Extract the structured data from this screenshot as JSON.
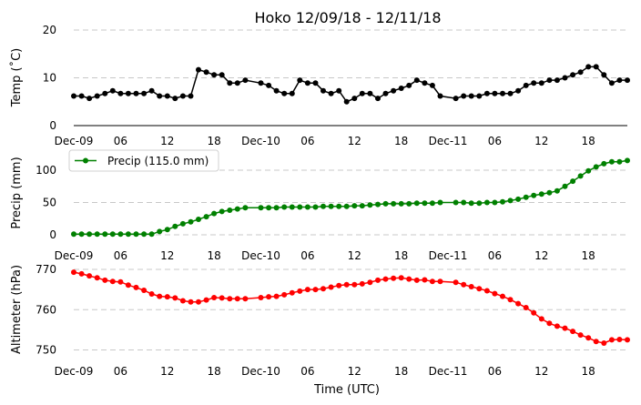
{
  "figure": {
    "title": "Hoko 12/09/18 - 12/11/18",
    "xlabel": "Time (UTC)"
  },
  "chart_data": [
    {
      "type": "line",
      "ylabel": "Temp ($^\\circ$C)",
      "ylabel_display": "Temp (˚C)",
      "ylim": [
        0,
        20
      ],
      "yticks": [
        0,
        10,
        20
      ],
      "grid": "horizontal-dashed",
      "color": "#000000",
      "x_ticks": [
        "Dec-09",
        "06",
        "12",
        "18",
        "Dec-10",
        "06",
        "12",
        "18",
        "Dec-11",
        "06",
        "12",
        "18"
      ],
      "x_hours": [
        0,
        6,
        12,
        18,
        24,
        30,
        36,
        42,
        48,
        54,
        60,
        66
      ],
      "x_hours_range": [
        0,
        71
      ],
      "series": [
        {
          "name": "",
          "hours": [
            0,
            1,
            2,
            3,
            4,
            5,
            6,
            7,
            8,
            9,
            10,
            11,
            12,
            13,
            14,
            15,
            16,
            17,
            18,
            19,
            20,
            21,
            22,
            24,
            25,
            26,
            27,
            28,
            29,
            30,
            31,
            32,
            33,
            34,
            35,
            36,
            37,
            38,
            39,
            40,
            41,
            42,
            43,
            44,
            45,
            46,
            47,
            49,
            50,
            51,
            52,
            53,
            54,
            55,
            56,
            57,
            58,
            59,
            60,
            61,
            62,
            63,
            64,
            65,
            66,
            67,
            68,
            69,
            70,
            71
          ],
          "values": [
            6.2,
            6.2,
            5.7,
            6.2,
            6.7,
            7.3,
            6.7,
            6.7,
            6.7,
            6.7,
            7.3,
            6.2,
            6.2,
            5.7,
            6.2,
            6.2,
            11.7,
            11.2,
            10.6,
            10.6,
            8.9,
            8.9,
            9.5,
            8.9,
            8.4,
            7.3,
            6.7,
            6.7,
            9.5,
            8.9,
            8.9,
            7.3,
            6.7,
            7.3,
            5.0,
            5.7,
            6.7,
            6.7,
            5.7,
            6.7,
            7.3,
            7.8,
            8.4,
            9.5,
            8.9,
            8.4,
            6.2,
            5.7,
            6.2,
            6.2,
            6.2,
            6.7,
            6.7,
            6.7,
            6.7,
            7.3,
            8.4,
            8.9,
            8.9,
            9.5,
            9.5,
            10.0,
            10.6,
            11.2,
            12.3,
            12.3,
            10.6,
            8.9,
            9.5,
            9.5
          ]
        }
      ]
    },
    {
      "type": "line",
      "ylabel": "Precip (mm)",
      "ylim": [
        -10,
        125
      ],
      "yticks": [
        0,
        50,
        100
      ],
      "grid": "horizontal-dashed",
      "color": "#008000",
      "legend": {
        "label": "Precip (115.0 mm)",
        "placement": "upper-left"
      },
      "x_ticks": [
        "Dec-09",
        "06",
        "12",
        "18",
        "Dec-10",
        "06",
        "12",
        "18",
        "Dec-11",
        "06",
        "12",
        "18"
      ],
      "x_hours": [
        0,
        6,
        12,
        18,
        24,
        30,
        36,
        42,
        48,
        54,
        60,
        66
      ],
      "x_hours_range": [
        0,
        71
      ],
      "series": [
        {
          "name": "Precip (115.0 mm)",
          "hours": [
            0,
            1,
            2,
            3,
            4,
            5,
            6,
            7,
            8,
            9,
            10,
            11,
            12,
            13,
            14,
            15,
            16,
            17,
            18,
            19,
            20,
            21,
            22,
            24,
            25,
            26,
            27,
            28,
            29,
            30,
            31,
            32,
            33,
            34,
            35,
            36,
            37,
            38,
            39,
            40,
            41,
            42,
            43,
            44,
            45,
            46,
            47,
            49,
            50,
            51,
            52,
            53,
            54,
            55,
            56,
            57,
            58,
            59,
            60,
            61,
            62,
            63,
            64,
            65,
            66,
            67,
            68,
            69,
            70,
            71
          ],
          "values": [
            1,
            1,
            1,
            1,
            1,
            1,
            1,
            1,
            1,
            1,
            1,
            5,
            8,
            13,
            17,
            20,
            24,
            28,
            33,
            36,
            38,
            40,
            42,
            42,
            42,
            42,
            43,
            43,
            43,
            43,
            43,
            44,
            44,
            44,
            44,
            45,
            45,
            46,
            47,
            48,
            48,
            48,
            48,
            49,
            49,
            49,
            50,
            50,
            50,
            49,
            49,
            50,
            50,
            51,
            53,
            55,
            58,
            61,
            63,
            65,
            68,
            75,
            83,
            91,
            99,
            105,
            110,
            113,
            113,
            115
          ]
        }
      ]
    },
    {
      "type": "line",
      "ylabel": "Altimeter (hPa)",
      "ylim": [
        748,
        771
      ],
      "yticks": [
        750,
        760,
        770
      ],
      "grid": "horizontal-dashed",
      "color": "#ff0000",
      "x_ticks": [
        "Dec-09",
        "06",
        "12",
        "18",
        "Dec-10",
        "06",
        "12",
        "18",
        "Dec-11",
        "06",
        "12",
        "18"
      ],
      "x_hours": [
        0,
        6,
        12,
        18,
        24,
        30,
        36,
        42,
        48,
        54,
        60,
        66
      ],
      "x_hours_range": [
        0,
        71
      ],
      "series": [
        {
          "name": "",
          "hours": [
            0,
            1,
            2,
            3,
            4,
            5,
            6,
            7,
            8,
            9,
            10,
            11,
            12,
            13,
            14,
            15,
            16,
            17,
            18,
            19,
            20,
            21,
            22,
            24,
            25,
            26,
            27,
            28,
            29,
            30,
            31,
            32,
            33,
            34,
            35,
            36,
            37,
            38,
            39,
            40,
            41,
            42,
            43,
            44,
            45,
            46,
            47,
            49,
            50,
            51,
            52,
            53,
            54,
            55,
            56,
            57,
            58,
            59,
            60,
            61,
            62,
            63,
            64,
            65,
            66,
            67,
            68,
            69,
            70,
            71
          ],
          "values": [
            769.3,
            768.9,
            768.4,
            767.9,
            767.3,
            767.0,
            766.9,
            766.1,
            765.5,
            764.8,
            763.9,
            763.3,
            763.2,
            762.9,
            762.2,
            761.9,
            761.9,
            762.4,
            763.0,
            762.9,
            762.7,
            762.7,
            762.7,
            763.0,
            763.2,
            763.3,
            763.7,
            764.2,
            764.6,
            765.0,
            765.0,
            765.2,
            765.6,
            766.0,
            766.2,
            766.2,
            766.4,
            766.8,
            767.3,
            767.6,
            767.8,
            767.9,
            767.6,
            767.3,
            767.4,
            767.0,
            767.0,
            766.8,
            766.2,
            765.7,
            765.2,
            764.7,
            764.0,
            763.3,
            762.5,
            761.5,
            760.5,
            759.2,
            757.7,
            756.6,
            755.9,
            755.4,
            754.6,
            753.7,
            753.0,
            752.1,
            751.7,
            752.5,
            752.6,
            752.5
          ]
        }
      ]
    }
  ]
}
